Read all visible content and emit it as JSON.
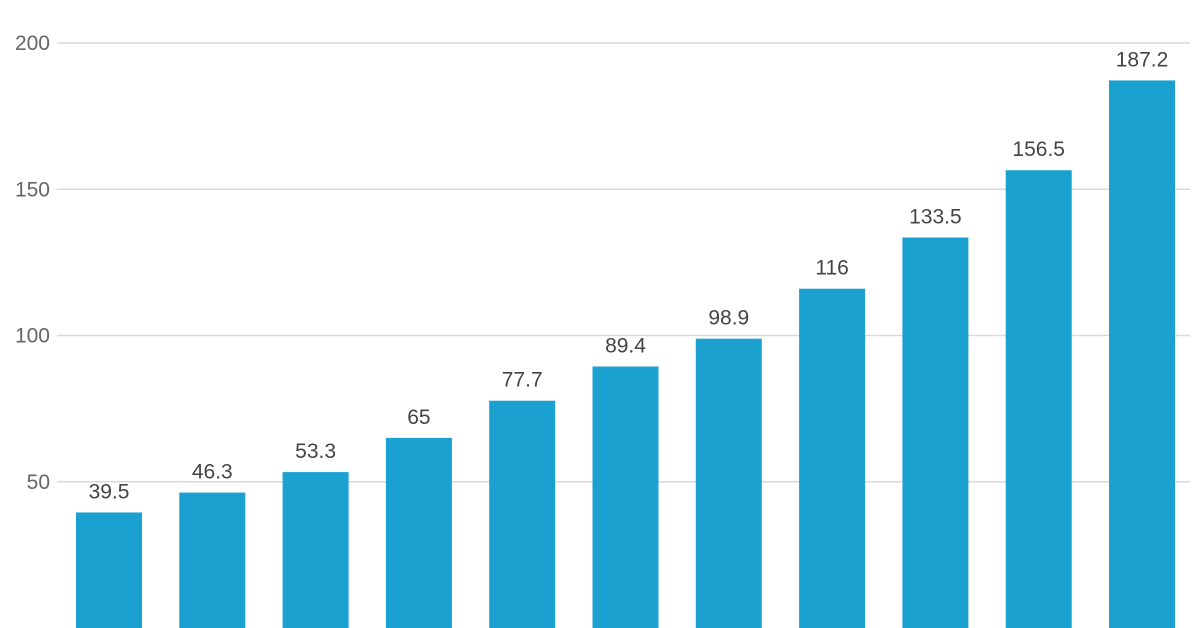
{
  "chart_data": {
    "type": "bar",
    "title": "",
    "xlabel": "",
    "ylabel": "",
    "categories": [
      "",
      "",
      "",
      "",
      "",
      "",
      "",
      "",
      "",
      "",
      ""
    ],
    "values": [
      39.5,
      46.3,
      53.3,
      65,
      77.7,
      89.4,
      98.9,
      116,
      133.5,
      156.5,
      187.2
    ],
    "value_labels": [
      "39.5",
      "46.3",
      "53.3",
      "65",
      "77.7",
      "89.4",
      "98.9",
      "116",
      "133.5",
      "156.5",
      "187.2"
    ],
    "yticks": [
      50,
      100,
      150,
      200
    ],
    "ytick_labels": [
      "50",
      "100",
      "150",
      "200"
    ],
    "ylim": [
      0,
      200
    ],
    "grid": true,
    "legend": "none",
    "colors": {
      "bar": "#1aa1d0",
      "grid": "#d9d9d9",
      "tick_text": "#666666",
      "label_text": "#444444"
    }
  }
}
